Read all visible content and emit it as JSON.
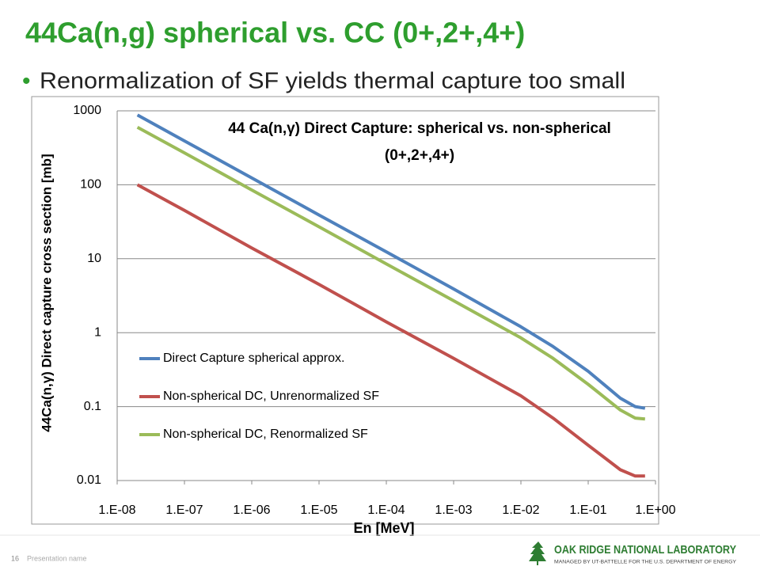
{
  "slide": {
    "title": "44Ca(n,g) spherical vs. CC (0+,2+,4+)",
    "bullet": "Renormalization of SF yields thermal capture too small",
    "page_number": "16",
    "footer": "Presentation name",
    "logo": "Oak Ridge National Laboratory",
    "logo_sub": "MANAGED BY UT-BATTELLE FOR THE U.S. DEPARTMENT OF ENERGY"
  },
  "chart_data": {
    "type": "line",
    "title": [
      "44 Ca(n,γ) Direct Capture: spherical vs. non-spherical",
      "(0+,2+,4+)"
    ],
    "x_label": "En [MeV]",
    "y_label": "44Ca(n,γ) Direct capture cross section [mb]",
    "x_log": true,
    "y_log": true,
    "grid": true,
    "legend": "lower-left",
    "x": [
      2e-08,
      1e-07,
      1e-06,
      1e-05,
      0.0001,
      0.001,
      0.01,
      0.03,
      0.1,
      0.3,
      0.5,
      0.7
    ],
    "series": [
      {
        "name": "Direct Capture spherical approx.",
        "color": "#4f81bd",
        "values": [
          880,
          392,
          124,
          39,
          12.4,
          3.9,
          1.2,
          0.65,
          0.3,
          0.13,
          0.1,
          0.095
        ]
      },
      {
        "name": "Non-spherical DC, Unrenormalized SF",
        "color": "#c0504d",
        "values": [
          100,
          45,
          14,
          4.5,
          1.4,
          0.45,
          0.14,
          0.07,
          0.03,
          0.014,
          0.0115,
          0.0115
        ]
      },
      {
        "name": "Non-spherical DC, Renormalized SF",
        "color": "#9bbb59",
        "values": [
          600,
          270,
          85,
          27,
          8.5,
          2.7,
          0.85,
          0.45,
          0.2,
          0.09,
          0.07,
          0.068
        ]
      }
    ],
    "xlim": [
      1e-08,
      1
    ],
    "xticks": [
      {
        "value": 1e-08,
        "label": "1.E-08"
      },
      {
        "value": 1e-07,
        "label": "1.E-07"
      },
      {
        "value": 1e-06,
        "label": "1.E-06"
      },
      {
        "value": 1e-05,
        "label": "1.E-05"
      },
      {
        "value": 0.0001,
        "label": "1.E-04"
      },
      {
        "value": 0.001,
        "label": "1.E-03"
      },
      {
        "value": 0.01,
        "label": "1.E-02"
      },
      {
        "value": 0.1,
        "label": "1.E-01"
      },
      {
        "value": 1,
        "label": "1.E+00"
      }
    ],
    "ylim": [
      0.01,
      1000
    ],
    "yticks": [
      0.01,
      0.1,
      1,
      10,
      100,
      1000
    ]
  }
}
